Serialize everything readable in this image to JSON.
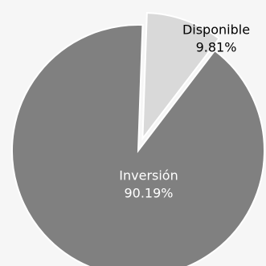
{
  "chart_data": {
    "type": "pie",
    "exploded": "Disponible",
    "slices": [
      {
        "label": "Inversión",
        "value": 90.19,
        "value_label": "90.19%",
        "color": "#808080",
        "text_color": "#ffffff"
      },
      {
        "label": "Disponible",
        "value": 9.81,
        "value_label": "9.81%",
        "color": "#d9d9d9",
        "text_color": "#000000"
      }
    ]
  }
}
